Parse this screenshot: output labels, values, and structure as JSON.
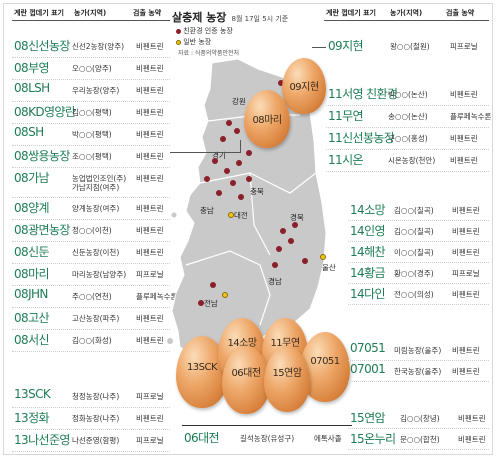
{
  "headers": {
    "code": "계란 껍데기 표기",
    "farm": "농가(지역)",
    "result": "검출 농약"
  },
  "map": {
    "title": "살충제 농장",
    "subtitle": "8월 17일 5시 기준",
    "legend_eco": "친환경 인증 농장",
    "legend_normal": "일반 농장",
    "source": "자료 : 식품의약품안전처",
    "regions": {
      "gangwon": "강원",
      "gyeonggi": "경기",
      "chungbuk": "충북",
      "gyeongbuk": "경북",
      "chungnam": "충남",
      "daejeon": "대전",
      "gyeongnam": "경남",
      "ulsan": "울산",
      "jeonnam": "전남"
    },
    "colors": {
      "eco": "#8b1f2a",
      "normal": "#f2c318",
      "code": "#1e7d55",
      "land": "#c9c9c9"
    }
  },
  "left_rows": [
    {
      "code": "08신선농장",
      "farm": "신선2농장(양주)",
      "result": "비펜트린"
    },
    {
      "code": "08부영",
      "farm": "오○○(양주)",
      "result": "비펜트린"
    },
    {
      "code": "08LSH",
      "farm": "우리농장(양주)",
      "result": "비펜트린"
    },
    {
      "code": "08KD영양란",
      "farm": "김○○(평택)",
      "result": "비펜트린"
    },
    {
      "code": "08SH",
      "farm": "박○○(평택)",
      "result": "비펜트린"
    },
    {
      "code": "08쌍용농장",
      "farm": "조○○(평택)",
      "result": "비펜트린"
    },
    {
      "code": "08가남",
      "farm": "농업법인조인(주)",
      "farm2": "가남지점(여주)",
      "result": "비펜트린"
    },
    {
      "code": "08양계",
      "farm": "양계농장(여주)",
      "result": "비펜트린"
    },
    {
      "code": "08광면농장",
      "farm": "정○○(이천)",
      "result": "비펜트린"
    },
    {
      "code": "08신둔",
      "farm": "신둔농장(이천)",
      "result": "비펜트린"
    },
    {
      "code": "08마리",
      "farm": "마리농장(남양주)",
      "result": "피프로닐"
    },
    {
      "code": "08JHN",
      "farm": "주○○(연천)",
      "result": "플루페녹수론"
    },
    {
      "code": "08고산",
      "farm": "고산농장(파주)",
      "result": "비펜트린"
    },
    {
      "code": "08서신",
      "farm": "김○○(화성)",
      "result": "비펜트린"
    }
  ],
  "left_bottom_rows": [
    {
      "code": "13SCK",
      "farm": "청정농장(나주)",
      "result": "피프로닐"
    },
    {
      "code": "13정화",
      "farm": "정화농장(나주)",
      "result": "비펜트린"
    },
    {
      "code": "13나선준영",
      "farm": "나선준영(함평)",
      "result": "피프로닐"
    }
  ],
  "right_top": {
    "code": "09지현",
    "farm": "왕○○(철원)",
    "result": "피프로닐"
  },
  "right_group1": [
    {
      "code": "11서영 친환경",
      "farm": "박○○(논산)",
      "result": "비펜트린"
    },
    {
      "code": "11무연",
      "farm": "송○○(논산)",
      "result": "플루페녹수론"
    },
    {
      "code": "11신선봉농장",
      "farm": "구○○(홍성)",
      "result": "비펜트린"
    },
    {
      "code": "11시온",
      "farm": "시온농장(천안)",
      "result": "비펜트린"
    }
  ],
  "right_group2": [
    {
      "code": "14소망",
      "farm": "김○○(칠곡)",
      "result": "비펜트린"
    },
    {
      "code": "14인영",
      "farm": "김○○(칠곡)",
      "result": "비펜트린"
    },
    {
      "code": "14해찬",
      "farm": "이○○(칠곡)",
      "result": "비펜트린"
    },
    {
      "code": "14황금",
      "farm": "황○○(경주)",
      "result": "피프로닐"
    },
    {
      "code": "14다인",
      "farm": "전○○(의성)",
      "result": "비펜트린"
    }
  ],
  "right_group3": [
    {
      "code": "07051",
      "farm": "미림농장(울주)",
      "result": "비펜트린"
    },
    {
      "code": "07001",
      "farm": "한국농장(울주)",
      "result": "비펜트린"
    }
  ],
  "right_group4": [
    {
      "code": "15연암",
      "farm": "김○○(창녕)",
      "result": "비펜트린"
    },
    {
      "code": "15온누리",
      "farm": "문○○(합천)",
      "result": "비펜트린"
    }
  ],
  "bottom_center": {
    "code": "06대전",
    "farm": "길석농장(유성구)",
    "result": "에톡사졸"
  },
  "eggs": {
    "jihyeon": "09지현",
    "mari": "08마리",
    "sck": "13SCK",
    "somang": "14소망",
    "daejeon": "06대전",
    "muyeon": "11무연",
    "yeonam": "15연암",
    "e07051": "07051"
  }
}
